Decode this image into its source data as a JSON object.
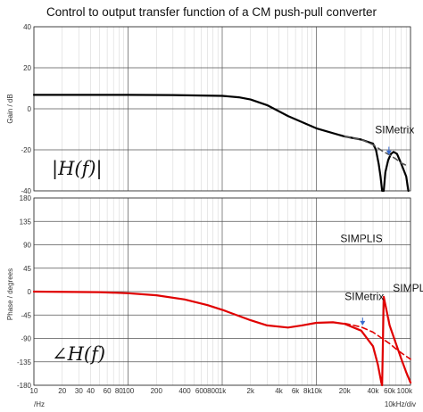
{
  "chart_data": [
    {
      "type": "line",
      "title": "Control to output transfer function of a CM push-pull converter",
      "ylabel": "Gain / dB",
      "xscale": "log",
      "xlim": [
        10,
        100000
      ],
      "ylim": [
        -40,
        40
      ],
      "yticks": [
        "40",
        "20",
        "0",
        "-20",
        "-40"
      ],
      "inset_label": "|H(f)|",
      "series": [
        {
          "name": "SIMPLIS",
          "color": "#000000",
          "x": [
            10,
            100,
            300,
            1000,
            1500,
            2000,
            3000,
            5000,
            10000,
            20000,
            30000,
            40000,
            43000,
            46000,
            48000,
            50000,
            51000,
            52000,
            54000,
            58000,
            62000,
            66000,
            72000,
            80000,
            90000,
            95000
          ],
          "y": [
            6.8,
            6.8,
            6.7,
            6.3,
            5.6,
            4.5,
            1.8,
            -3.5,
            -9.5,
            -13.5,
            -15.0,
            -17.0,
            -20.0,
            -27.0,
            -33.0,
            -40.0,
            -57.0,
            -40.0,
            -31.0,
            -25.0,
            -22.0,
            -21.0,
            -22.0,
            -27.0,
            -33.0,
            -40.0
          ]
        },
        {
          "name": "SIMetrix",
          "color": "#555555",
          "dashed": true,
          "x": [
            20000,
            30000,
            40000,
            50000,
            60000,
            70000,
            80000,
            95000
          ],
          "y": [
            -13.5,
            -15.0,
            -17.5,
            -20.5,
            -22.5,
            -24.5,
            -26.5,
            -28.0
          ]
        }
      ],
      "annotations": [
        {
          "text": "SIMetrix",
          "x": 42000,
          "y": -12
        },
        {
          "text": "SIMPLIS",
          "x": 18000,
          "y": -65
        }
      ],
      "arrow": {
        "x": 59000,
        "from_y": -18.5,
        "to_y": -22.5,
        "color": "#3a6ccf"
      }
    },
    {
      "type": "line",
      "ylabel": "Phase / degrees",
      "xscale": "log",
      "xlim": [
        10,
        100000
      ],
      "ylim": [
        -180,
        180
      ],
      "yticks": [
        "180",
        "135",
        "90",
        "45",
        "0",
        "-45",
        "-90",
        "-135",
        "-180"
      ],
      "xticks": [
        {
          "v": 10,
          "l": "10"
        },
        {
          "v": 20,
          "l": "20"
        },
        {
          "v": 30,
          "l": "30"
        },
        {
          "v": 40,
          "l": "40"
        },
        {
          "v": 60,
          "l": "60"
        },
        {
          "v": 80,
          "l": "80"
        },
        {
          "v": 100,
          "l": "100"
        },
        {
          "v": 200,
          "l": "200"
        },
        {
          "v": 400,
          "l": "400"
        },
        {
          "v": 600,
          "l": "600"
        },
        {
          "v": 800,
          "l": "800"
        },
        {
          "v": 1000,
          "l": "1k"
        },
        {
          "v": 2000,
          "l": "2k"
        },
        {
          "v": 4000,
          "l": "4k"
        },
        {
          "v": 6000,
          "l": "6k"
        },
        {
          "v": 8000,
          "l": "8k"
        },
        {
          "v": 10000,
          "l": "10k"
        },
        {
          "v": 20000,
          "l": "20k"
        },
        {
          "v": 40000,
          "l": "40k"
        },
        {
          "v": 60000,
          "l": "60k"
        },
        {
          "v": 100000,
          "l": "100k"
        }
      ],
      "xlabel_left": "/Hz",
      "xlabel_right": "10kHz/div",
      "inset_label": "∠H(f)",
      "series": [
        {
          "name": "SIMPLIS",
          "color": "#e00000",
          "x": [
            10,
            50,
            100,
            200,
            400,
            700,
            1000,
            2000,
            3000,
            5000,
            7000,
            10000,
            15000,
            20000,
            30000,
            40000,
            45000,
            49000,
            50000,
            52000,
            60000,
            70000,
            80000,
            90000,
            100000
          ],
          "y": [
            0,
            -1,
            -3,
            -7,
            -15,
            -26,
            -35,
            -55,
            -65,
            -69,
            -65,
            -60,
            -59,
            -62,
            -75,
            -105,
            -140,
            -175,
            -180,
            -10,
            -65,
            -100,
            -130,
            -155,
            -175
          ]
        },
        {
          "name": "SIMetrix",
          "color": "#e00000",
          "dashed": true,
          "x": [
            20000,
            30000,
            40000,
            50000,
            60000,
            70000,
            80000,
            100000
          ],
          "y": [
            -61,
            -68,
            -78,
            -90,
            -100,
            -110,
            -118,
            -130
          ]
        }
      ],
      "annotations": [
        {
          "text": "SIMPLIS",
          "x": 65000,
          "y": 0
        },
        {
          "text": "SIMetrix",
          "x": 20000,
          "y": -16
        }
      ],
      "arrow": {
        "x": 31000,
        "from_y": -50,
        "to_y": -65,
        "color": "#3a6ccf"
      }
    }
  ]
}
